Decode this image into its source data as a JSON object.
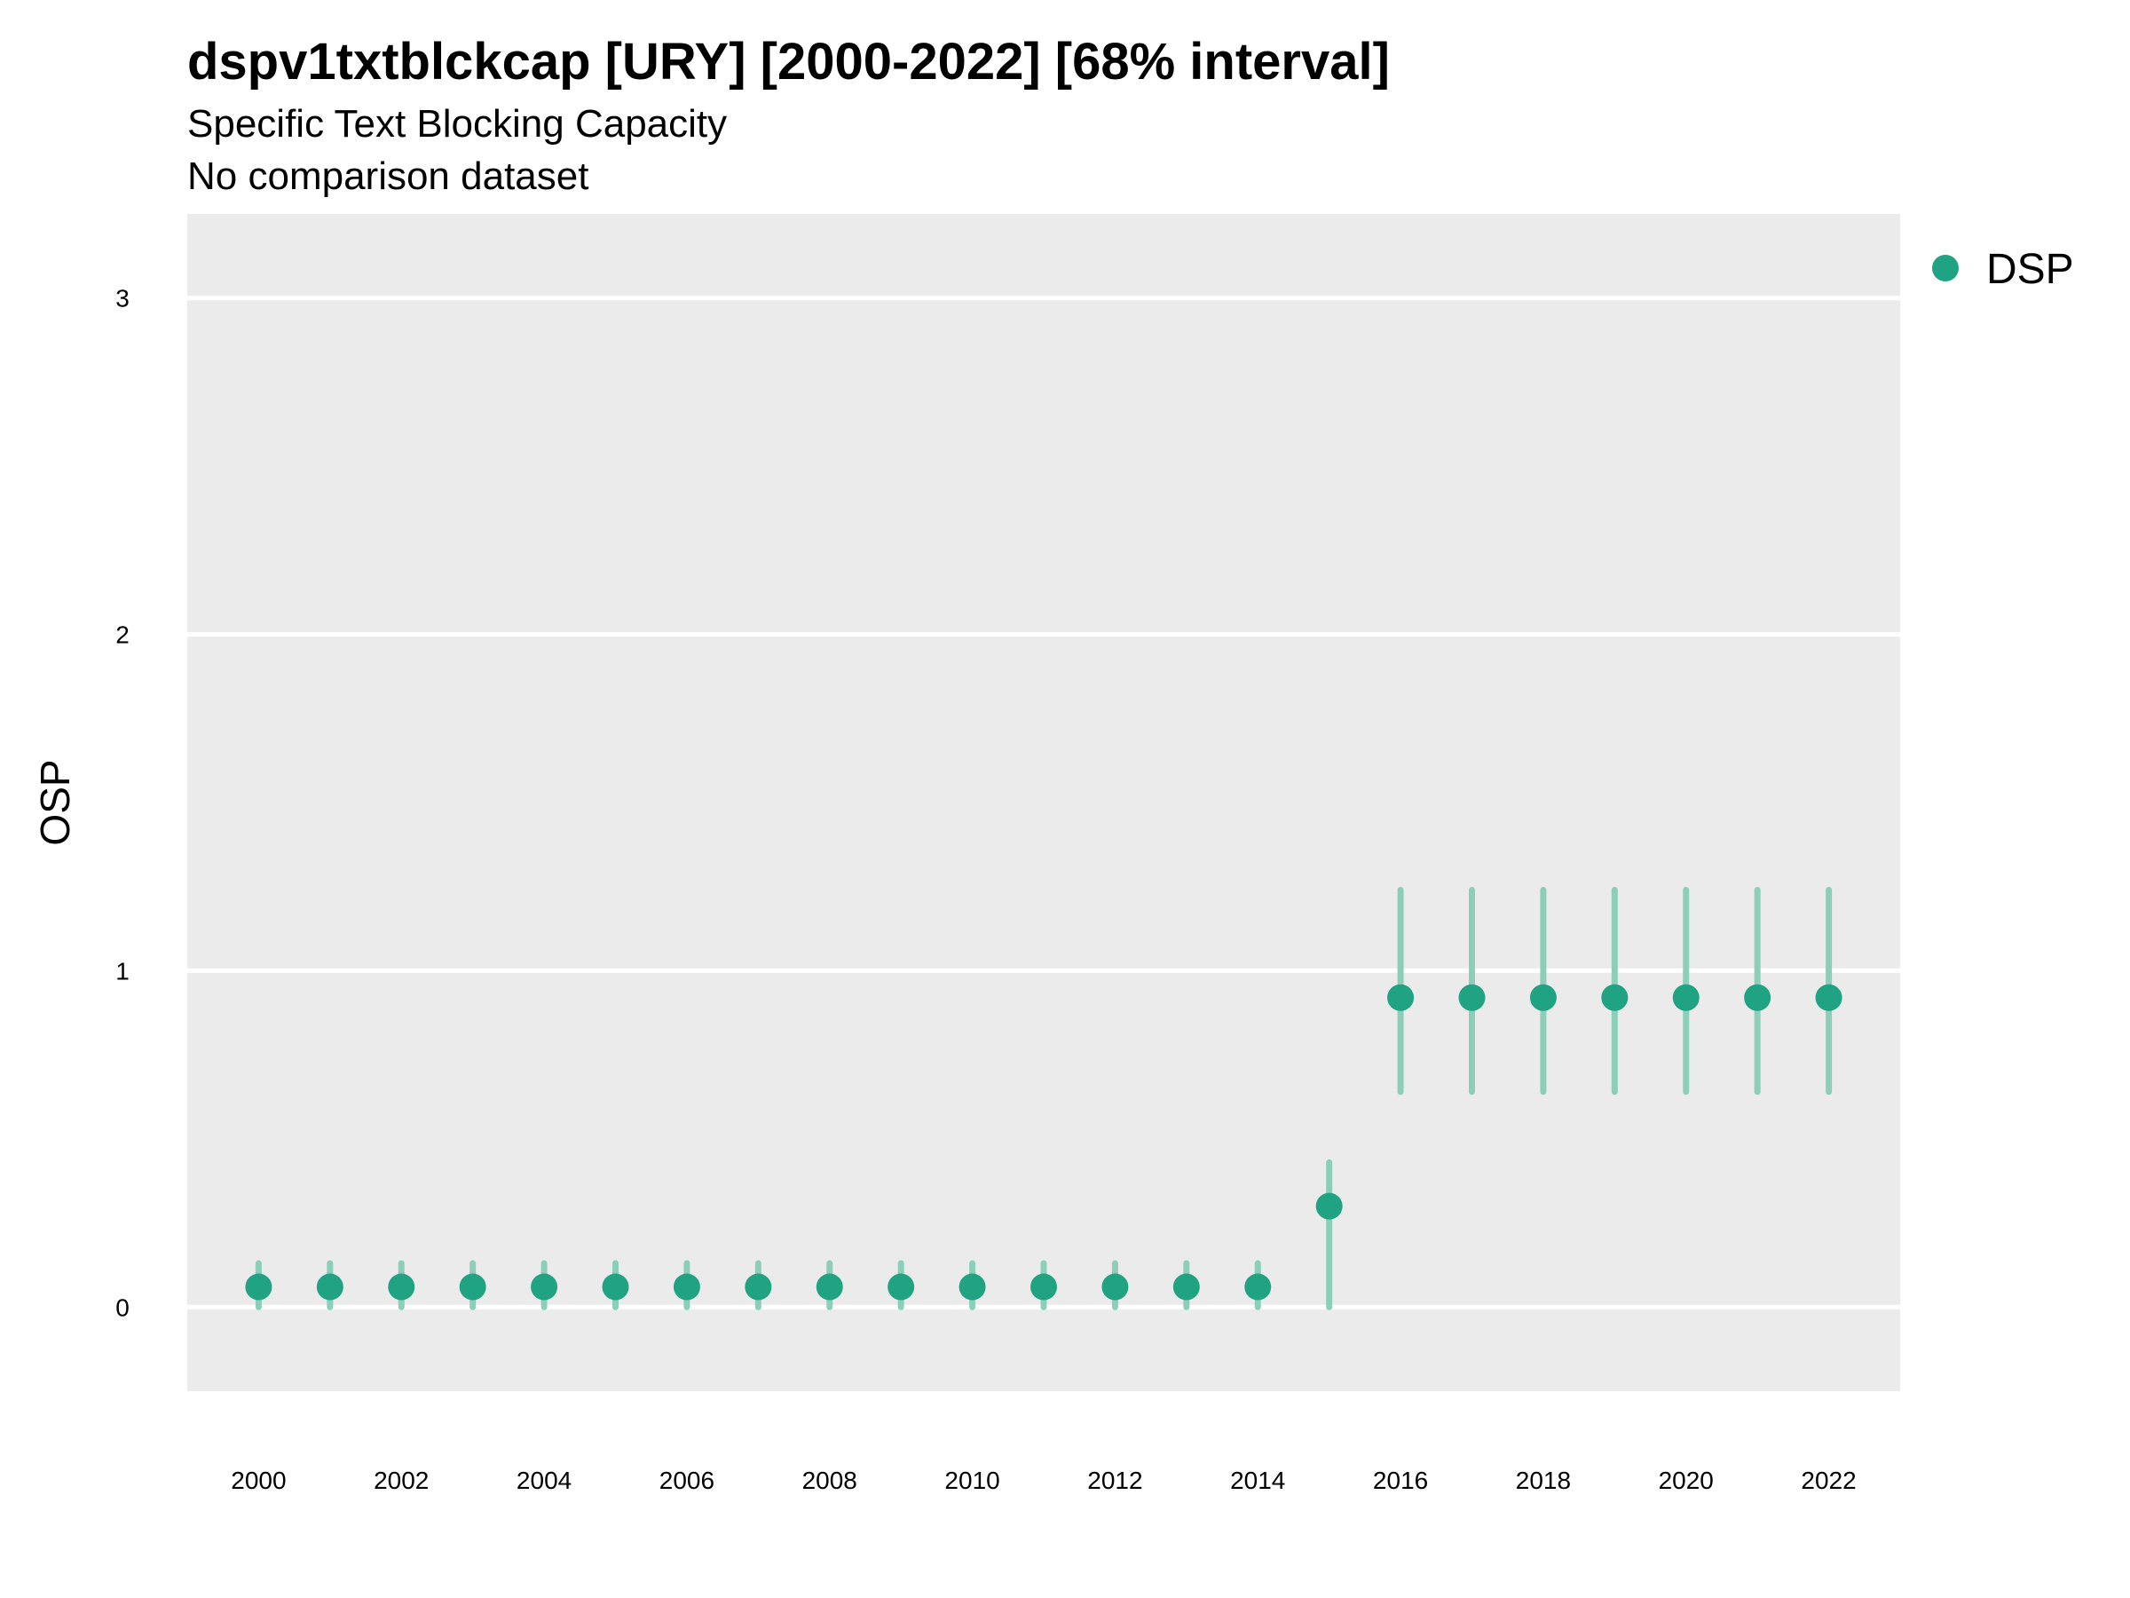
{
  "chart_data": {
    "type": "scatter",
    "title": "dspv1txtblckcap [URY] [2000-2022] [68% interval]",
    "subtitle": "Specific Text Blocking Capacity",
    "subtitle2": "No comparison dataset",
    "xlabel": "",
    "ylabel": "OSP",
    "xlim": [
      1999,
      2023
    ],
    "ylim": [
      -0.25,
      3.25
    ],
    "x_ticks": [
      "2000",
      "2002",
      "2004",
      "2006",
      "2008",
      "2010",
      "2012",
      "2014",
      "2016",
      "2018",
      "2020",
      "2022"
    ],
    "y_ticks": [
      "0",
      "1",
      "2",
      "3"
    ],
    "grid": true,
    "legend_position": "right-top",
    "series": [
      {
        "name": "DSP",
        "color": "#1fa383",
        "interval_color": "#8ccfb8",
        "x": [
          2000,
          2001,
          2002,
          2003,
          2004,
          2005,
          2006,
          2007,
          2008,
          2009,
          2010,
          2011,
          2012,
          2013,
          2014,
          2015,
          2016,
          2017,
          2018,
          2019,
          2020,
          2021,
          2022
        ],
        "y": [
          0.06,
          0.06,
          0.06,
          0.06,
          0.06,
          0.06,
          0.06,
          0.06,
          0.06,
          0.06,
          0.06,
          0.06,
          0.06,
          0.06,
          0.06,
          0.3,
          0.92,
          0.92,
          0.92,
          0.92,
          0.92,
          0.92,
          0.92
        ],
        "low": [
          0,
          0,
          0,
          0,
          0,
          0,
          0,
          0,
          0,
          0,
          0,
          0,
          0,
          0,
          0,
          0,
          0.64,
          0.64,
          0.64,
          0.64,
          0.64,
          0.64,
          0.64
        ],
        "high": [
          0.13,
          0.13,
          0.13,
          0.13,
          0.13,
          0.13,
          0.13,
          0.13,
          0.13,
          0.13,
          0.13,
          0.13,
          0.13,
          0.13,
          0.13,
          0.43,
          1.24,
          1.24,
          1.24,
          1.24,
          1.24,
          1.24,
          1.24
        ]
      }
    ]
  }
}
